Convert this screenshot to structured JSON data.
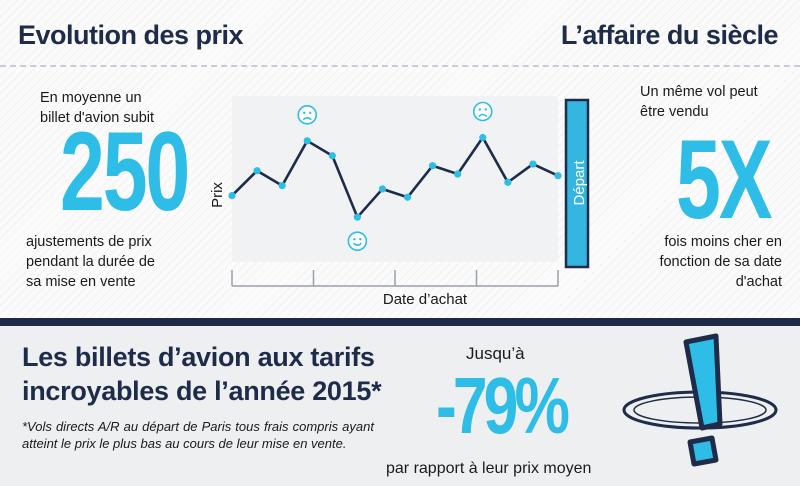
{
  "header": {
    "left_title": "Evolution des prix",
    "right_title": "L’affaire du siècle"
  },
  "left_panel": {
    "intro": [
      "En moyenne un",
      "billet d'avion subit"
    ],
    "number": "250",
    "outro": [
      "ajustements de prix",
      "pendant la durée de",
      "sa mise en vente"
    ]
  },
  "right_panel": {
    "intro": [
      "Un même vol peut",
      "être vendu"
    ],
    "number": "5X",
    "outro": [
      "fois moins cher en",
      "fonction de sa date",
      "d'achat"
    ]
  },
  "chart_data": {
    "type": "line",
    "title": "",
    "xlabel": "Date d’achat",
    "ylabel": "Prix",
    "depart_label": "Départ",
    "x": [
      1,
      2,
      3,
      4,
      5,
      6,
      7,
      8,
      9,
      10,
      11,
      12,
      13,
      14
    ],
    "values": [
      40,
      55,
      46,
      73,
      64,
      27,
      44,
      39,
      58,
      53,
      75,
      48,
      59,
      52
    ],
    "ylim": [
      0,
      100
    ],
    "annotations": [
      {
        "x": 4,
        "icon": "sad-face-icon"
      },
      {
        "x": 6,
        "icon": "happy-face-icon"
      },
      {
        "x": 11,
        "icon": "sad-face-icon"
      }
    ],
    "grid": false,
    "colors": {
      "line": "#1e2c49",
      "points": "#2dbde6",
      "depart_bar": "#35b6e0"
    }
  },
  "bottom": {
    "headline": [
      "Les billets d’avion aux tarifs",
      "incroyables de l’année 2015*"
    ],
    "footnote": "*Vols directs A/R au départ de Paris tous frais compris ayant atteint le prix le plus bas au cours de leur mise en vente.",
    "jusqua": "Jusqu’à",
    "percent": "-79%",
    "par_rapport": "par rapport à leur prix moyen",
    "icon": "exclamation-icon"
  },
  "colors": {
    "navy": "#1e2c49",
    "accent": "#2dbde6"
  }
}
